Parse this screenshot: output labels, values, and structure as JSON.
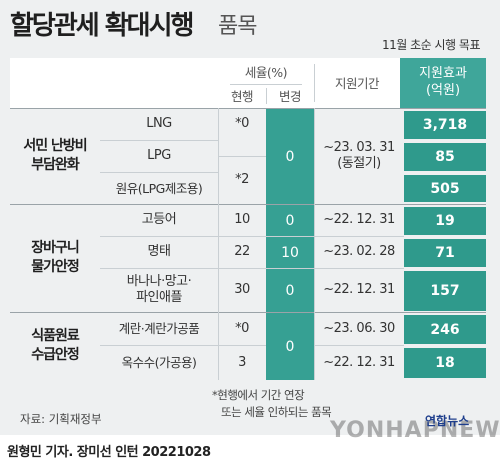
{
  "title": {
    "main": "할당관세 확대시행",
    "sub": "품목",
    "note": "11월 초순 시행 목표"
  },
  "headers": {
    "tax_rate": "세율(%)",
    "current": "현행",
    "change": "변경",
    "period": "지원기간",
    "effect": "지원효과",
    "effect_unit": "(억원)"
  },
  "groups": [
    {
      "line1": "서민 난방비",
      "line2": "부담완화"
    },
    {
      "line1": "장바구니",
      "line2": "물가안정"
    },
    {
      "line1": "식품원료",
      "line2": "수급안정"
    }
  ],
  "items": [
    {
      "name": "LNG",
      "effect": "3,718"
    },
    {
      "name": "LPG",
      "effect": "85"
    },
    {
      "name": "원유(LPG제조용)",
      "effect": "505"
    },
    {
      "name": "고등어",
      "current": "10",
      "change": "0",
      "period": "~22. 12. 31",
      "effect": "19"
    },
    {
      "name": "명태",
      "current": "22",
      "change": "10",
      "period": "~23. 02. 28",
      "effect": "71"
    },
    {
      "name_line1": "바나나·망고·",
      "name_line2": "파인애플",
      "current": "30",
      "change": "0",
      "period": "~22. 12. 31",
      "effect": "157"
    },
    {
      "name": "계란·계란가공품",
      "current": "*0",
      "period": "~23. 06. 30",
      "effect": "246"
    },
    {
      "name": "옥수수(가공용)",
      "current": "3",
      "period": "~22. 12. 31",
      "effect": "18"
    }
  ],
  "merged": {
    "lng_current": "*0",
    "lpg_current": "*2",
    "heating_change": "0",
    "heating_period_line1": "~23. 03. 31",
    "heating_period_line2": "(동절기)",
    "food_change": "0"
  },
  "footnote": {
    "line1": "*현행에서 기간 연장",
    "line2": "또는 세율 인하되는 품목"
  },
  "source": "자료: 기획재정부",
  "logo": "연합뉴스",
  "watermark": "YONHAPNEWS",
  "credit": "원형민 기자. 장미선 인턴  20221028",
  "colors": {
    "accent_header": "#3fa69a",
    "effect_cell": "#2f9a8c",
    "change_cell": "#36a093",
    "background": "#eef0f1"
  }
}
